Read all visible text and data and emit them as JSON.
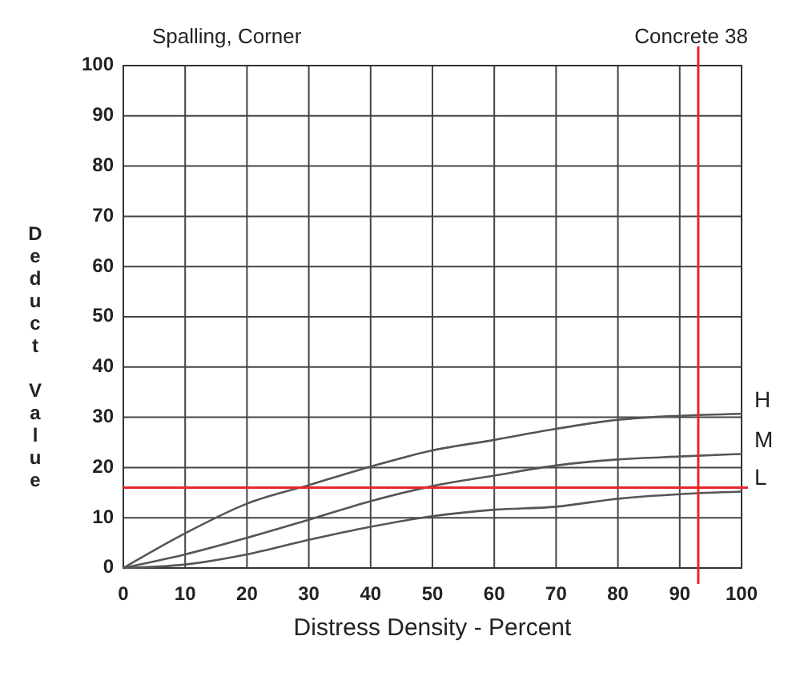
{
  "chart_data": {
    "type": "line",
    "title": "Spalling, Corner",
    "subtitle": "Concrete 38",
    "xlabel": "Distress Density - Percent",
    "ylabel": "Deduct Value",
    "x": [
      0,
      10,
      20,
      30,
      40,
      50,
      60,
      70,
      80,
      90,
      100
    ],
    "series": [
      {
        "name": "H",
        "color": "#555555",
        "values": [
          0,
          6.9,
          12.8,
          16.5,
          20.2,
          23.4,
          25.5,
          27.7,
          29.5,
          30.3,
          30.7
        ]
      },
      {
        "name": "M",
        "color": "#555555",
        "values": [
          0,
          2.7,
          6,
          9.6,
          13.3,
          16.3,
          18.4,
          20.4,
          21.6,
          22.2,
          22.7
        ]
      },
      {
        "name": "L",
        "color": "#555555",
        "values": [
          0,
          0.7,
          2.7,
          5.6,
          8.2,
          10.3,
          11.6,
          12.2,
          13.8,
          14.7,
          15.2
        ]
      }
    ],
    "xlim": [
      0,
      100
    ],
    "ylim": [
      0,
      100
    ],
    "xticks": [
      0,
      10,
      20,
      30,
      40,
      50,
      60,
      70,
      80,
      90,
      100
    ],
    "yticks": [
      0,
      10,
      20,
      30,
      40,
      50,
      60,
      70,
      80,
      90,
      100
    ],
    "grid": true,
    "marker": "none",
    "line_style": "solid",
    "ref_lines": [
      {
        "axis": "y",
        "value": 16,
        "color": "#e8262a"
      },
      {
        "axis": "x",
        "value": 93,
        "color": "#e8262a"
      }
    ]
  }
}
